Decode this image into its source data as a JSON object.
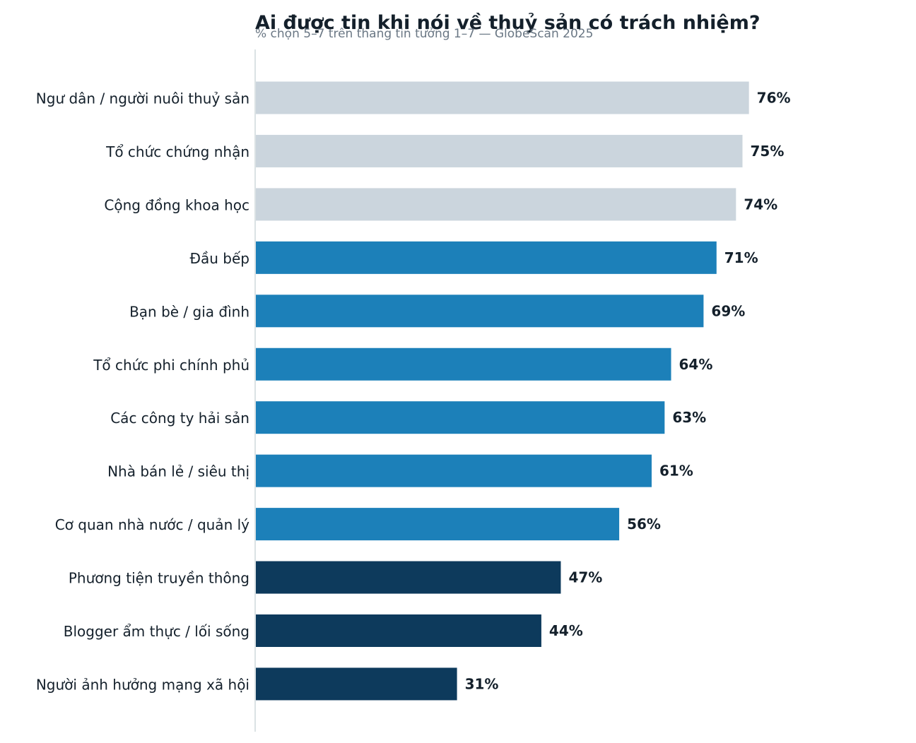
{
  "chart_data": {
    "type": "bar",
    "orientation": "horizontal",
    "title": "Ai được tin khi nói về thuỷ sản có trách nhiệm?",
    "subtitle": "% chọn 5–7 trên thang tin tưởng 1–7 — GlobeScan 2025",
    "categories": [
      "Ngư dân / người nuôi thuỷ sản",
      "Tổ chức chứng nhận",
      "Cộng đồng khoa học",
      "Đầu bếp",
      "Bạn bè / gia đình",
      "Tổ chức phi chính phủ",
      "Các công ty hải sản",
      "Nhà bán lẻ / siêu thị",
      "Cơ quan nhà nước / quản lý",
      "Phương tiện truyền thông",
      "Blogger ẩm thực / lối sống",
      "Người ảnh hưởng mạng xã hội"
    ],
    "values": [
      76,
      75,
      74,
      71,
      69,
      64,
      63,
      61,
      56,
      47,
      44,
      31
    ],
    "value_labels": [
      "76%",
      "75%",
      "74%",
      "71%",
      "69%",
      "64%",
      "63%",
      "61%",
      "56%",
      "47%",
      "44%",
      "31%"
    ],
    "colors": [
      "#cbd5dd",
      "#cbd5dd",
      "#cbd5dd",
      "#1c80b9",
      "#1c80b9",
      "#1c80b9",
      "#1c80b9",
      "#1c80b9",
      "#1c80b9",
      "#0d3a5c",
      "#0d3a5c",
      "#0d3a5c"
    ],
    "xlim": [
      0,
      100
    ],
    "grid": false,
    "legend": "none",
    "axis_color": "#cfd8dc"
  }
}
